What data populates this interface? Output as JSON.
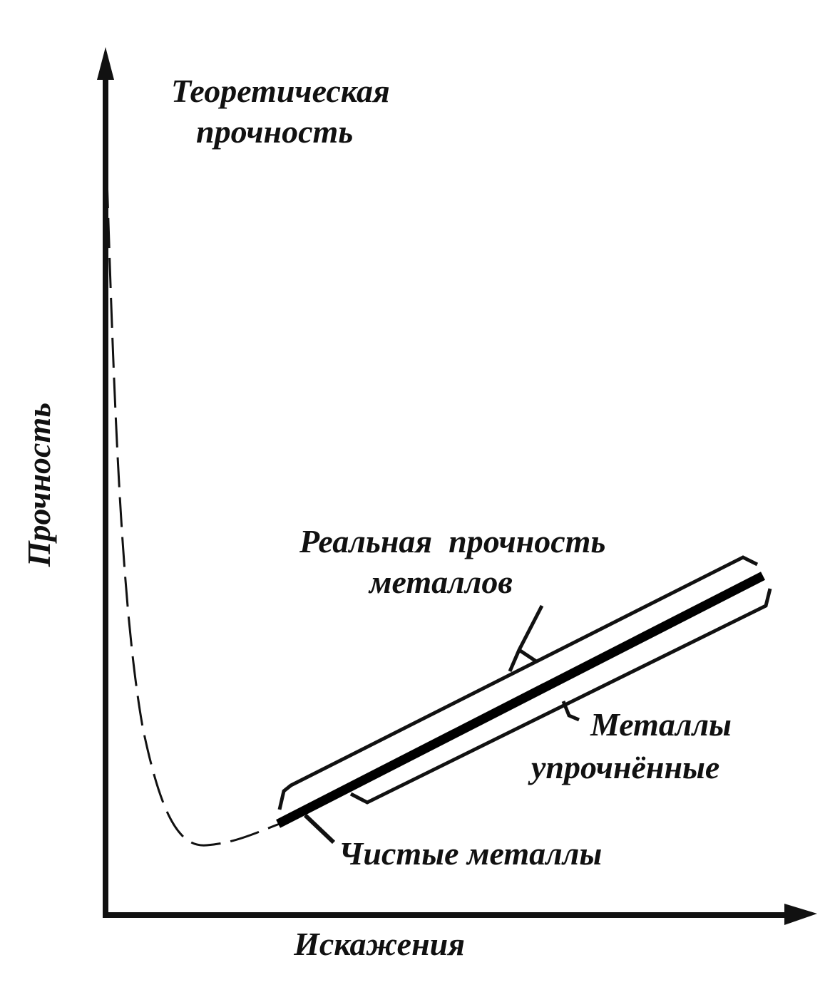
{
  "title": {
    "lines": [
      "Теоретическая",
      "прочность"
    ]
  },
  "y_axis": {
    "label": "Прочность"
  },
  "x_axis": {
    "label": "Искажения"
  },
  "annotations": {
    "real_strength": {
      "lines": [
        "Реальная  прочность",
        "металлов"
      ]
    },
    "hardened": {
      "lines": [
        "Металлы",
        "упрочнённые"
      ]
    },
    "pure": {
      "label": "Чистые металлы"
    }
  }
}
